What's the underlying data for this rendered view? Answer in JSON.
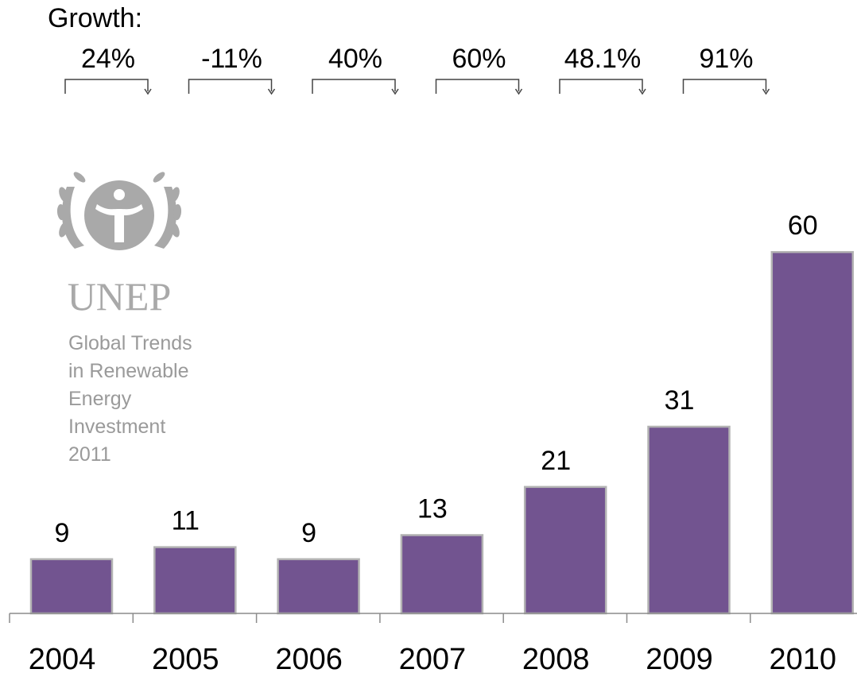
{
  "growth": {
    "title": "Growth:",
    "values": [
      "24%",
      "-11%",
      "40%",
      "60%",
      "48.1%",
      "91%"
    ]
  },
  "logo": {
    "text": "UNEP",
    "source_lines": [
      "Global Trends",
      "in Renewable",
      "Energy",
      "Investment",
      "2011"
    ]
  },
  "colors": {
    "bar": "#725490",
    "bar_border": "#b3b3b3",
    "logo": "#a9a9a9",
    "axis": "#8c8c8c"
  },
  "chart_data": {
    "type": "bar",
    "title": "",
    "xlabel": "",
    "ylabel": "",
    "categories": [
      "2004",
      "2005",
      "2006",
      "2007",
      "2008",
      "2009",
      "2010"
    ],
    "values": [
      9,
      11,
      9,
      13,
      21,
      31,
      60
    ],
    "data_labels": [
      "9",
      "11",
      "9",
      "13",
      "21",
      "31",
      "60"
    ],
    "ylim": [
      0,
      60
    ],
    "grid": false,
    "legend": "none"
  }
}
